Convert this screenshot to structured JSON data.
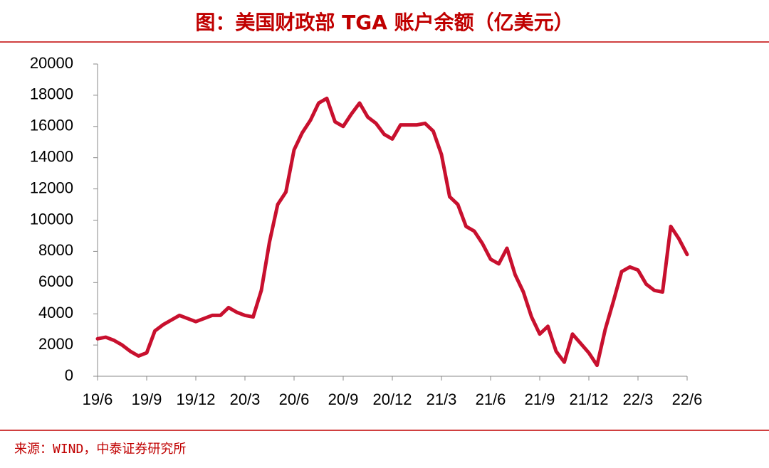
{
  "chart_data": {
    "type": "line",
    "title": "图：美国财政部 TGA 账户余额（亿美元）",
    "source": "来源：WIND，中泰证券研究所",
    "categories": [
      "19/6",
      null,
      null,
      null,
      null,
      null,
      "19/9",
      null,
      null,
      null,
      null,
      null,
      "19/12",
      null,
      null,
      null,
      null,
      null,
      "20/3",
      null,
      null,
      null,
      null,
      null,
      "20/6",
      null,
      null,
      null,
      null,
      null,
      "20/9",
      null,
      null,
      null,
      null,
      null,
      "20/12",
      null,
      null,
      null,
      null,
      null,
      "21/3",
      null,
      null,
      null,
      null,
      null,
      "21/6",
      null,
      null,
      null,
      null,
      null,
      "21/9",
      null,
      null,
      null,
      null,
      null,
      "21/12",
      null,
      null,
      null,
      null,
      null,
      "22/3",
      null,
      null,
      null,
      null,
      null,
      "22/6"
    ],
    "values": [
      2400,
      2500,
      2300,
      2000,
      1600,
      1300,
      1500,
      2900,
      3300,
      3600,
      3900,
      3700,
      3500,
      3700,
      3900,
      3900,
      4400,
      4100,
      3900,
      3800,
      5500,
      8600,
      11000,
      11800,
      14500,
      15600,
      16400,
      17500,
      17800,
      16300,
      16000,
      16800,
      17500,
      16600,
      16200,
      15500,
      15200,
      16100,
      16100,
      16100,
      16200,
      15700,
      14200,
      11500,
      11000,
      9600,
      9300,
      8500,
      7500,
      7200,
      8200,
      6500,
      5400,
      3800,
      2700,
      3200,
      1600,
      900,
      2700,
      2100,
      1500,
      700,
      3000,
      4800,
      6700,
      7000,
      6800,
      5900,
      5500,
      5400,
      9600,
      8800,
      7800
    ],
    "color": "#c8102e",
    "ylim": [
      0,
      20000
    ],
    "yticks": [
      0,
      2000,
      4000,
      6000,
      8000,
      10000,
      12000,
      14000,
      16000,
      18000,
      20000
    ]
  }
}
